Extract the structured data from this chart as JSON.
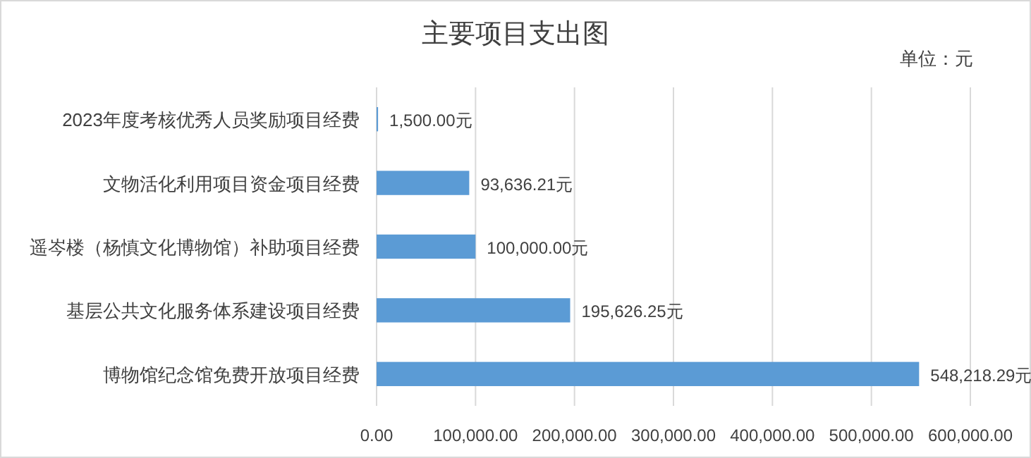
{
  "chart_data": {
    "type": "bar",
    "orientation": "horizontal",
    "title": "主要项目支出图",
    "annotations": [
      "单位：元"
    ],
    "categories": [
      "2023年度考核优秀人员奖励项目经费",
      "文物活化利用项目资金项目经费",
      "遥岑楼（杨慎文化博物馆）补助项目经费",
      "基层公共文化服务体系建设项目经费",
      "博物馆纪念馆免费开放项目经费"
    ],
    "values": [
      1500.0,
      93636.21,
      100000.0,
      195626.25,
      548218.29
    ],
    "value_labels": [
      "1,500.00元",
      "93,636.21元",
      "100,000.00元",
      "195,626.25元",
      "548,218.29元"
    ],
    "color": "#5b9bd5",
    "xlim": [
      0,
      600000
    ],
    "xticks": [
      {
        "value": 0,
        "label": "0.00"
      },
      {
        "value": 100000,
        "label": "100,000.00"
      },
      {
        "value": 200000,
        "label": "200,000.00"
      },
      {
        "value": 300000,
        "label": "300,000.00"
      },
      {
        "value": 400000,
        "label": "400,000.00"
      },
      {
        "value": 500000,
        "label": "500,000.00"
      },
      {
        "value": 600000,
        "label": "600,000.00"
      }
    ],
    "grid": "x"
  }
}
